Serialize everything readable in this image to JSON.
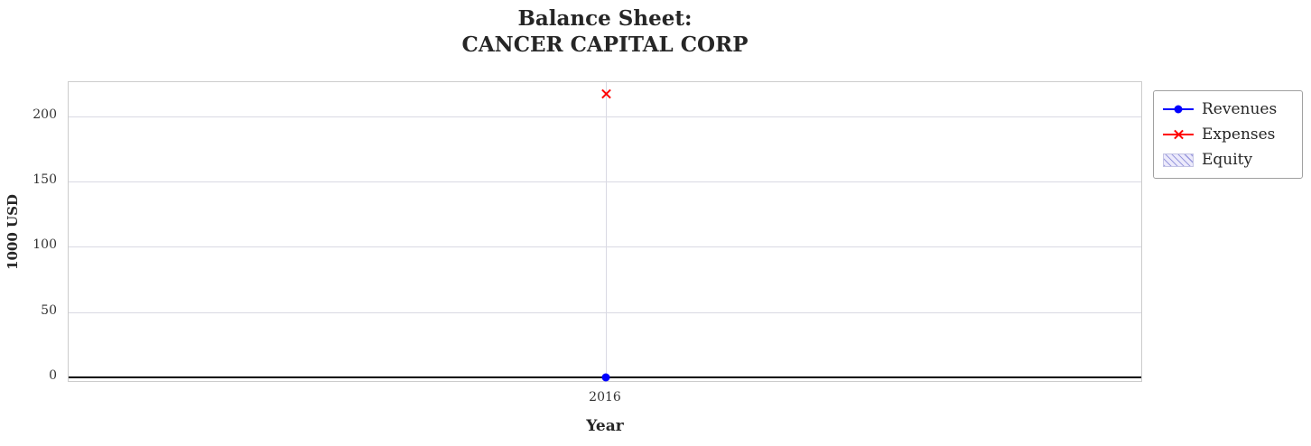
{
  "title": {
    "line1": "Balance Sheet:",
    "line2": "CANCER CAPITAL CORP"
  },
  "axes": {
    "xlabel": "Year",
    "ylabel": "1000 USD"
  },
  "legend": {
    "items": [
      {
        "label": "Revenues",
        "color": "#0000ff",
        "marker": "circle",
        "kind": "line"
      },
      {
        "label": "Expenses",
        "color": "#ff0000",
        "marker": "x",
        "kind": "line"
      },
      {
        "label": "Equity",
        "color": "#9999dd",
        "marker": "hatched-patch",
        "kind": "patch"
      }
    ]
  },
  "chart_data": {
    "type": "line",
    "title": "Balance Sheet:\nCANCER CAPITAL CORP",
    "xlabel": "Year",
    "ylabel": "1000 USD",
    "x": [
      2016
    ],
    "series": [
      {
        "name": "Revenues",
        "type": "line",
        "marker": "circle",
        "color": "#0000ff",
        "values": [
          0
        ]
      },
      {
        "name": "Expenses",
        "type": "line",
        "marker": "x",
        "color": "#ff0000",
        "values": [
          217
        ]
      },
      {
        "name": "Equity",
        "type": "area-hatched",
        "color": "#9999dd",
        "values": [
          0
        ]
      }
    ],
    "ylim": [
      -4,
      226
    ],
    "yticks": [
      0,
      50,
      100,
      150,
      200
    ],
    "xticks": [
      "2016"
    ],
    "grid": true,
    "zero_line": true,
    "legend_position": "upper-right-outside"
  }
}
